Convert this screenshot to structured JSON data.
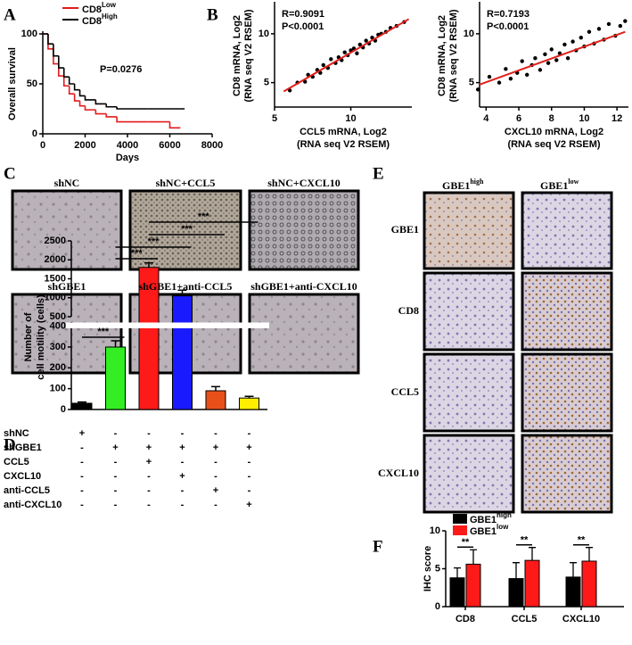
{
  "panel_labels": [
    "A",
    "B",
    "C",
    "D",
    "E",
    "F"
  ],
  "chart_data": [
    {
      "type": "line",
      "step": true,
      "xlabel": "Days",
      "ylabel": "Overall survival",
      "annotation": "P=0.0276",
      "xlim": [
        0,
        8000
      ],
      "xticks": [
        0,
        2000,
        4000,
        6000,
        8000
      ],
      "ylim": [
        0,
        100
      ],
      "yticks": [
        0,
        50,
        100
      ],
      "series": [
        {
          "name": "CD8",
          "superscript": "Low",
          "color": "#e41a1c",
          "x": [
            0,
            250,
            500,
            750,
            1000,
            1250,
            1500,
            1750,
            2000,
            2500,
            3000,
            3500,
            4000,
            5000,
            6000,
            6500
          ],
          "values": [
            100,
            85,
            70,
            58,
            48,
            40,
            33,
            28,
            24,
            20,
            17,
            12,
            12,
            12,
            6,
            6
          ]
        },
        {
          "name": "CD8",
          "superscript": "High",
          "color": "#000000",
          "x": [
            0,
            250,
            500,
            750,
            1000,
            1250,
            1500,
            1750,
            2000,
            2500,
            3000,
            3500,
            4000,
            5000,
            6000,
            6700
          ],
          "values": [
            100,
            90,
            78,
            66,
            57,
            50,
            44,
            38,
            34,
            30,
            27,
            25,
            25,
            25,
            25,
            25
          ]
        }
      ]
    },
    {
      "type": "scatter",
      "annotations": [
        "R=0.9091",
        "P<0.0001"
      ],
      "xlabel": [
        "CCL5 mRNA, Log2",
        "(RNA seq V2 RSEM)"
      ],
      "ylabel": [
        "CD8 mRNA, Log2",
        "(RNA seq V2 RSEM)"
      ],
      "xlim": [
        5,
        14
      ],
      "xticks": [
        5,
        10
      ],
      "ylim": [
        2.5,
        13
      ],
      "yticks": [
        5,
        10
      ],
      "color": "#000000",
      "x": [
        6.0,
        6.5,
        7.0,
        7.2,
        7.5,
        7.8,
        8.0,
        8.2,
        8.5,
        8.7,
        9.0,
        9.2,
        9.4,
        9.6,
        9.8,
        10.0,
        10.2,
        10.4,
        10.6,
        10.8,
        11.0,
        11.2,
        11.4,
        11.6,
        11.8,
        12.0,
        12.3,
        12.6,
        13.0,
        13.5
      ],
      "values": [
        4.2,
        5.0,
        5.1,
        5.8,
        5.6,
        6.3,
        6.0,
        6.8,
        6.5,
        7.4,
        7.0,
        7.6,
        7.3,
        8.1,
        7.8,
        8.3,
        8.5,
        8.0,
        8.9,
        8.6,
        9.3,
        9.0,
        9.6,
        9.3,
        9.9,
        10.0,
        10.2,
        10.6,
        10.8,
        11.2
      ],
      "fit": {
        "color": "#e0201b",
        "x": [
          5.6,
          13.8
        ],
        "values": [
          4.1,
          11.5
        ]
      }
    },
    {
      "type": "scatter",
      "annotations": [
        "R=0.7193",
        "P<0.0001"
      ],
      "xlabel": [
        "CXCL10 mRNA, Log2",
        "(RNA seq V2 RSEM)"
      ],
      "ylabel": [
        "CD8 mRNA, Log2",
        "(RNA seq V2 RSEM)"
      ],
      "xlim": [
        3.6,
        12.7
      ],
      "xticks": [
        4,
        6,
        8,
        10,
        12
      ],
      "ylim": [
        2.5,
        13
      ],
      "yticks": [
        5,
        10
      ],
      "color": "#000000",
      "x": [
        3.5,
        4.2,
        4.8,
        5.2,
        5.5,
        5.9,
        6.2,
        6.5,
        6.8,
        7.0,
        7.3,
        7.6,
        7.8,
        8.0,
        8.3,
        8.5,
        8.8,
        9.0,
        9.3,
        9.5,
        9.8,
        10.0,
        10.3,
        10.6,
        10.9,
        11.2,
        11.5,
        11.9,
        12.2,
        12.5
      ],
      "values": [
        4.3,
        5.6,
        5.0,
        6.4,
        5.4,
        6.0,
        7.2,
        5.8,
        6.8,
        7.5,
        6.3,
        7.9,
        7.0,
        8.4,
        7.3,
        8.0,
        8.9,
        7.5,
        9.2,
        8.3,
        9.6,
        8.7,
        10.2,
        9.0,
        10.5,
        9.4,
        11.0,
        9.8,
        10.8,
        11.3
      ],
      "fit": {
        "color": "#e0201b",
        "x": [
          3.6,
          12.5
        ],
        "values": [
          4.8,
          10.2
        ]
      }
    },
    {
      "type": "bar",
      "ylabel": [
        "Number of",
        "cell motility (cells)"
      ],
      "ylim": [
        [
          0,
          420
        ],
        [
          500,
          2500
        ]
      ],
      "yticks": [
        0,
        100,
        200,
        300,
        400,
        500,
        1000,
        1500,
        2000,
        2500
      ],
      "values": [
        30,
        300,
        1800,
        1050,
        90,
        55
      ],
      "errors": [
        6,
        30,
        120,
        150,
        20,
        8
      ],
      "colors": [
        "#000000",
        "#33ee22",
        "#ff1a1a",
        "#1a1aff",
        "#e8501a",
        "#ffee00"
      ],
      "significance": [
        "***",
        "***",
        "***",
        "***",
        "***"
      ],
      "conditions": {
        "rows": [
          "shNC",
          "shGBE1",
          "CCL5",
          "CXCL10",
          "anti-CCL5",
          "anti-CXCL10"
        ],
        "signs": [
          [
            "+",
            "-",
            "-",
            "-",
            "-",
            "-"
          ],
          [
            "-",
            "+",
            "+",
            "+",
            "+",
            "+"
          ],
          [
            "-",
            "-",
            "+",
            "-",
            "-",
            "-"
          ],
          [
            "-",
            "-",
            "-",
            "+",
            "-",
            "-"
          ],
          [
            "-",
            "-",
            "-",
            "-",
            "+",
            "-"
          ],
          [
            "-",
            "-",
            "-",
            "-",
            "-",
            "+"
          ]
        ]
      }
    },
    {
      "type": "bar",
      "ylabel": "IHC score",
      "categories": [
        "CD8",
        "CCL5",
        "CXCL10"
      ],
      "ylim": [
        0,
        10
      ],
      "yticks": [
        0,
        5,
        10
      ],
      "significance": [
        "**",
        "**",
        "**"
      ],
      "series": [
        {
          "name": "GBE1",
          "superscript": "high",
          "color": "#000000",
          "values": [
            3.8,
            3.7,
            3.9
          ],
          "errors": [
            1.3,
            2.1,
            1.9
          ]
        },
        {
          "name": "GBE1",
          "superscript": "low",
          "color": "#ff1a1a",
          "values": [
            5.6,
            6.1,
            6.0
          ],
          "errors": [
            1.9,
            1.7,
            1.8
          ]
        }
      ]
    }
  ],
  "panel_c": {
    "labels": [
      "shNC",
      "shNC+CCL5",
      "shNC+CXCL10",
      "shGBE1",
      "shGBE1+anti-CCL5",
      "shGBE1+anti-CXCL10"
    ]
  },
  "panel_e": {
    "columns": [
      {
        "name": "GBE1",
        "superscript": "high"
      },
      {
        "name": "GBE1",
        "superscript": "low"
      }
    ],
    "rows": [
      "GBE1",
      "CD8",
      "CCL5",
      "CXCL10"
    ]
  }
}
